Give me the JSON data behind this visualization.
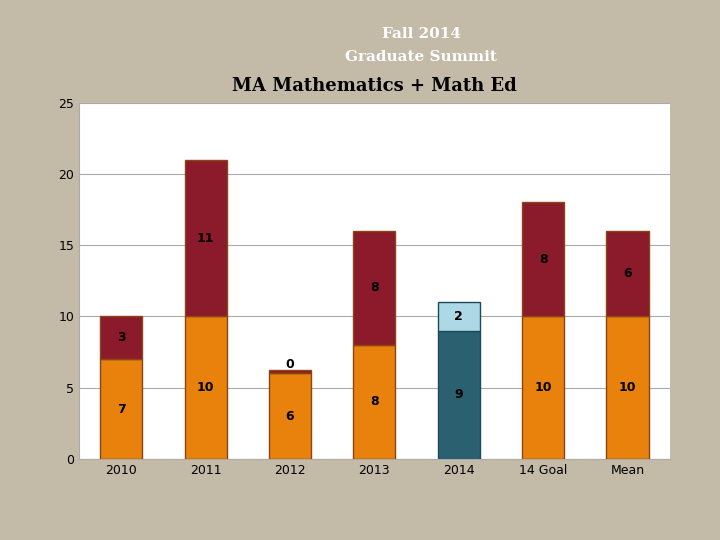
{
  "title": "MA Mathematics + Math Ed",
  "header_line1": "Fall 2014",
  "header_line2": "Graduate Summit",
  "categories": [
    "2010",
    "2011",
    "2012",
    "2013",
    "2014",
    "14 Goal",
    "Mean"
  ],
  "bottom_values": [
    7,
    10,
    6,
    8,
    9,
    10,
    10
  ],
  "top_values": [
    3,
    11,
    0,
    8,
    2,
    8,
    6
  ],
  "bottom_colors": [
    "#E8820C",
    "#E8820C",
    "#E8820C",
    "#E8820C",
    "#2B6070",
    "#E8820C",
    "#E8820C"
  ],
  "top_colors": [
    "#8B1A2A",
    "#8B1A2A",
    "#8B1A2A",
    "#8B1A2A",
    "#ADD8E6",
    "#8B1A2A",
    "#8B1A2A"
  ],
  "bar_edge_colors": [
    "#8B4513",
    "#8B4513",
    "#8B4513",
    "#8B4513",
    "#1C4A5A",
    "#8B4513",
    "#8B4513"
  ],
  "ylim": [
    0,
    25
  ],
  "yticks": [
    0,
    5,
    10,
    15,
    20,
    25
  ],
  "outer_background": "#C4BAA8",
  "chart_bg": "#FFFFFF",
  "header_bg": "#8B1A2A",
  "header_text_color": "#FFFFFF",
  "title_fontsize": 13,
  "tick_label_fontsize": 9,
  "value_fontsize": 9,
  "bar_width": 0.5,
  "chart_border_color": "#8B7355",
  "grid_color": "#AAAAAA"
}
